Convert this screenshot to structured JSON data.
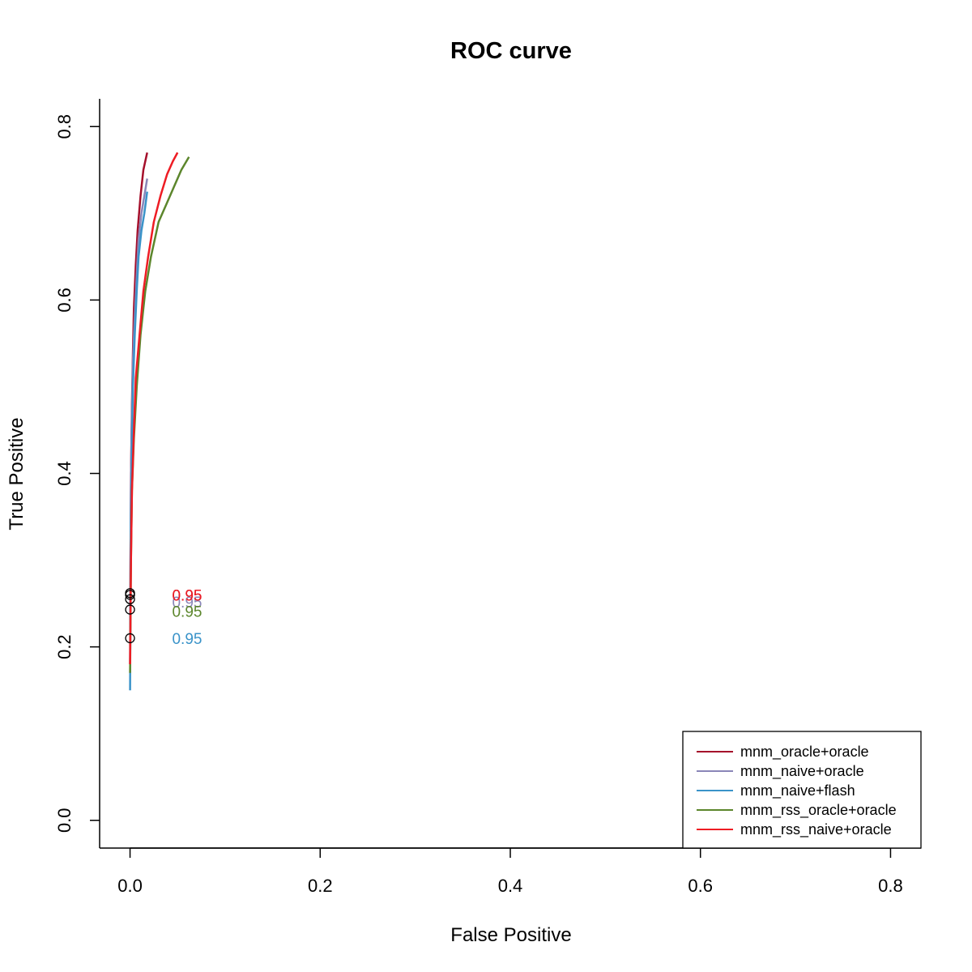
{
  "chart_data": {
    "type": "line",
    "title": "ROC curve",
    "xlabel": "False Positive",
    "ylabel": "True Positive",
    "xlim": [
      -0.032,
      0.832
    ],
    "ylim": [
      -0.032,
      0.832
    ],
    "x_ticks": [
      "0.0",
      "0.2",
      "0.4",
      "0.6",
      "0.8"
    ],
    "y_ticks": [
      "0.0",
      "0.2",
      "0.4",
      "0.6",
      "0.8"
    ],
    "legend_position": "bottom-right",
    "grid": false,
    "series": [
      {
        "name": "mnm_oracle+oracle",
        "color": "#a50f2b",
        "points": [
          [
            0.0,
            0.18
          ],
          [
            0.0005,
            0.3
          ],
          [
            0.001,
            0.4
          ],
          [
            0.002,
            0.48
          ],
          [
            0.003,
            0.54
          ],
          [
            0.004,
            0.59
          ],
          [
            0.006,
            0.64
          ],
          [
            0.008,
            0.68
          ],
          [
            0.011,
            0.72
          ],
          [
            0.014,
            0.75
          ],
          [
            0.018,
            0.77
          ]
        ],
        "marker": [
          0.0,
          0.26
        ],
        "threshold_label": "0.95",
        "threshold_label_pos": [
          0.06,
          0.26
        ]
      },
      {
        "name": "mnm_naive+oracle",
        "color": "#8a86b8",
        "points": [
          [
            0.0,
            0.18
          ],
          [
            0.0005,
            0.3
          ],
          [
            0.001,
            0.4
          ],
          [
            0.002,
            0.47
          ],
          [
            0.003,
            0.53
          ],
          [
            0.005,
            0.58
          ],
          [
            0.007,
            0.63
          ],
          [
            0.009,
            0.67
          ],
          [
            0.012,
            0.7
          ],
          [
            0.015,
            0.72
          ],
          [
            0.018,
            0.74
          ]
        ],
        "marker": [
          0.0,
          0.255
        ],
        "threshold_label": "0.95",
        "threshold_label_pos": [
          0.06,
          0.252
        ]
      },
      {
        "name": "mnm_naive+flash",
        "color": "#3a93c9",
        "points": [
          [
            0.0,
            0.15
          ],
          [
            0.0005,
            0.25
          ],
          [
            0.001,
            0.35
          ],
          [
            0.002,
            0.44
          ],
          [
            0.003,
            0.5
          ],
          [
            0.005,
            0.56
          ],
          [
            0.007,
            0.61
          ],
          [
            0.009,
            0.65
          ],
          [
            0.012,
            0.68
          ],
          [
            0.015,
            0.7
          ],
          [
            0.018,
            0.725
          ]
        ],
        "marker": [
          0.0,
          0.21
        ],
        "threshold_label": "0.95",
        "threshold_label_pos": [
          0.06,
          0.21
        ]
      },
      {
        "name": "mnm_rss_oracle+oracle",
        "color": "#5c862c",
        "points": [
          [
            0.0,
            0.17
          ],
          [
            0.001,
            0.3
          ],
          [
            0.002,
            0.38
          ],
          [
            0.004,
            0.44
          ],
          [
            0.007,
            0.5
          ],
          [
            0.011,
            0.56
          ],
          [
            0.016,
            0.61
          ],
          [
            0.022,
            0.65
          ],
          [
            0.03,
            0.69
          ],
          [
            0.038,
            0.71
          ],
          [
            0.046,
            0.73
          ],
          [
            0.054,
            0.75
          ],
          [
            0.062,
            0.765
          ]
        ],
        "marker": [
          0.0,
          0.243
        ],
        "threshold_label": "0.95",
        "threshold_label_pos": [
          0.06,
          0.241
        ]
      },
      {
        "name": "mnm_rss_naive+oracle",
        "color": "#ee1c24",
        "points": [
          [
            0.0,
            0.18
          ],
          [
            0.001,
            0.3
          ],
          [
            0.002,
            0.38
          ],
          [
            0.004,
            0.45
          ],
          [
            0.006,
            0.51
          ],
          [
            0.01,
            0.56
          ],
          [
            0.014,
            0.61
          ],
          [
            0.019,
            0.65
          ],
          [
            0.025,
            0.69
          ],
          [
            0.032,
            0.72
          ],
          [
            0.039,
            0.745
          ],
          [
            0.045,
            0.76
          ],
          [
            0.05,
            0.77
          ]
        ],
        "marker": [
          0.0,
          0.262
        ],
        "threshold_label": "0.95",
        "threshold_label_pos": [
          0.06,
          0.26
        ]
      }
    ]
  }
}
